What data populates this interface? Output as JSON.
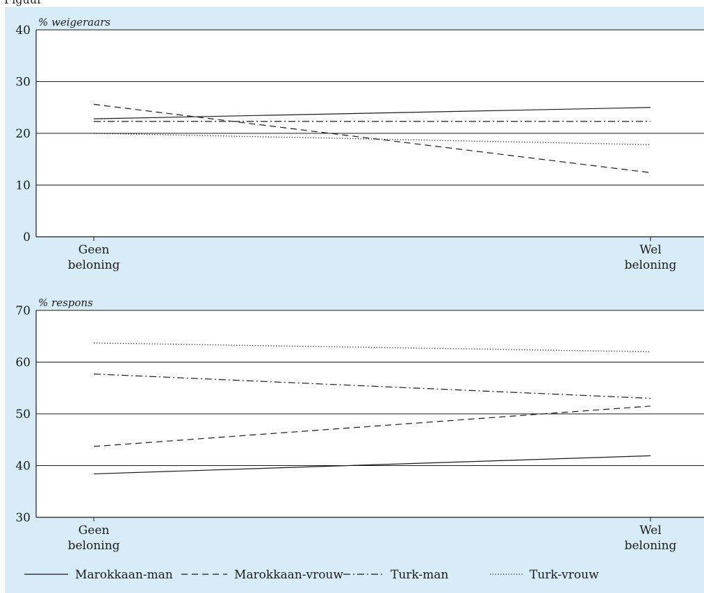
{
  "header_text": "Figuur",
  "chart_data": [
    {
      "type": "line",
      "ylabel": "% weigeraars",
      "ylim": [
        0,
        40
      ],
      "yticks": [
        "0",
        "10",
        "20",
        "30",
        "40"
      ],
      "categories": [
        [
          "Geen",
          "beloning"
        ],
        [
          "Wel",
          "beloning"
        ]
      ],
      "grid": true,
      "series": [
        {
          "name": "Marokkaan-man",
          "style": "solid",
          "values": [
            22.8,
            25.0
          ]
        },
        {
          "name": "Marokkaan-vrouw",
          "style": "dashed",
          "values": [
            25.6,
            12.4
          ]
        },
        {
          "name": "Turk-man",
          "style": "dashdot",
          "values": [
            22.3,
            22.3
          ]
        },
        {
          "name": "Turk-vrouw",
          "style": "dotted",
          "values": [
            20.0,
            17.8
          ]
        }
      ]
    },
    {
      "type": "line",
      "ylabel": "% respons",
      "ylim": [
        30,
        70
      ],
      "yticks": [
        "30",
        "40",
        "50",
        "60",
        "70"
      ],
      "categories": [
        [
          "Geen",
          "beloning"
        ],
        [
          "Wel",
          "beloning"
        ]
      ],
      "grid": true,
      "series": [
        {
          "name": "Marokkaan-man",
          "style": "solid",
          "values": [
            38.4,
            41.9
          ]
        },
        {
          "name": "Marokkaan-vrouw",
          "style": "dashed",
          "values": [
            43.7,
            51.5
          ]
        },
        {
          "name": "Turk-man",
          "style": "dashdot",
          "values": [
            57.7,
            53.0
          ]
        },
        {
          "name": "Turk-vrouw",
          "style": "dotted",
          "values": [
            63.7,
            62.0
          ]
        }
      ]
    }
  ],
  "legend": [
    {
      "label": "Marokkaan-man",
      "style": "solid"
    },
    {
      "label": "Marokkaan-vrouw",
      "style": "dashed"
    },
    {
      "label": "Turk-man",
      "style": "dashdot"
    },
    {
      "label": "Turk-vrouw",
      "style": "dotted"
    }
  ],
  "colors": {
    "panel_background": "#d8ecf7",
    "plot_background": "#ffffff",
    "line": "#1a1a1a"
  }
}
